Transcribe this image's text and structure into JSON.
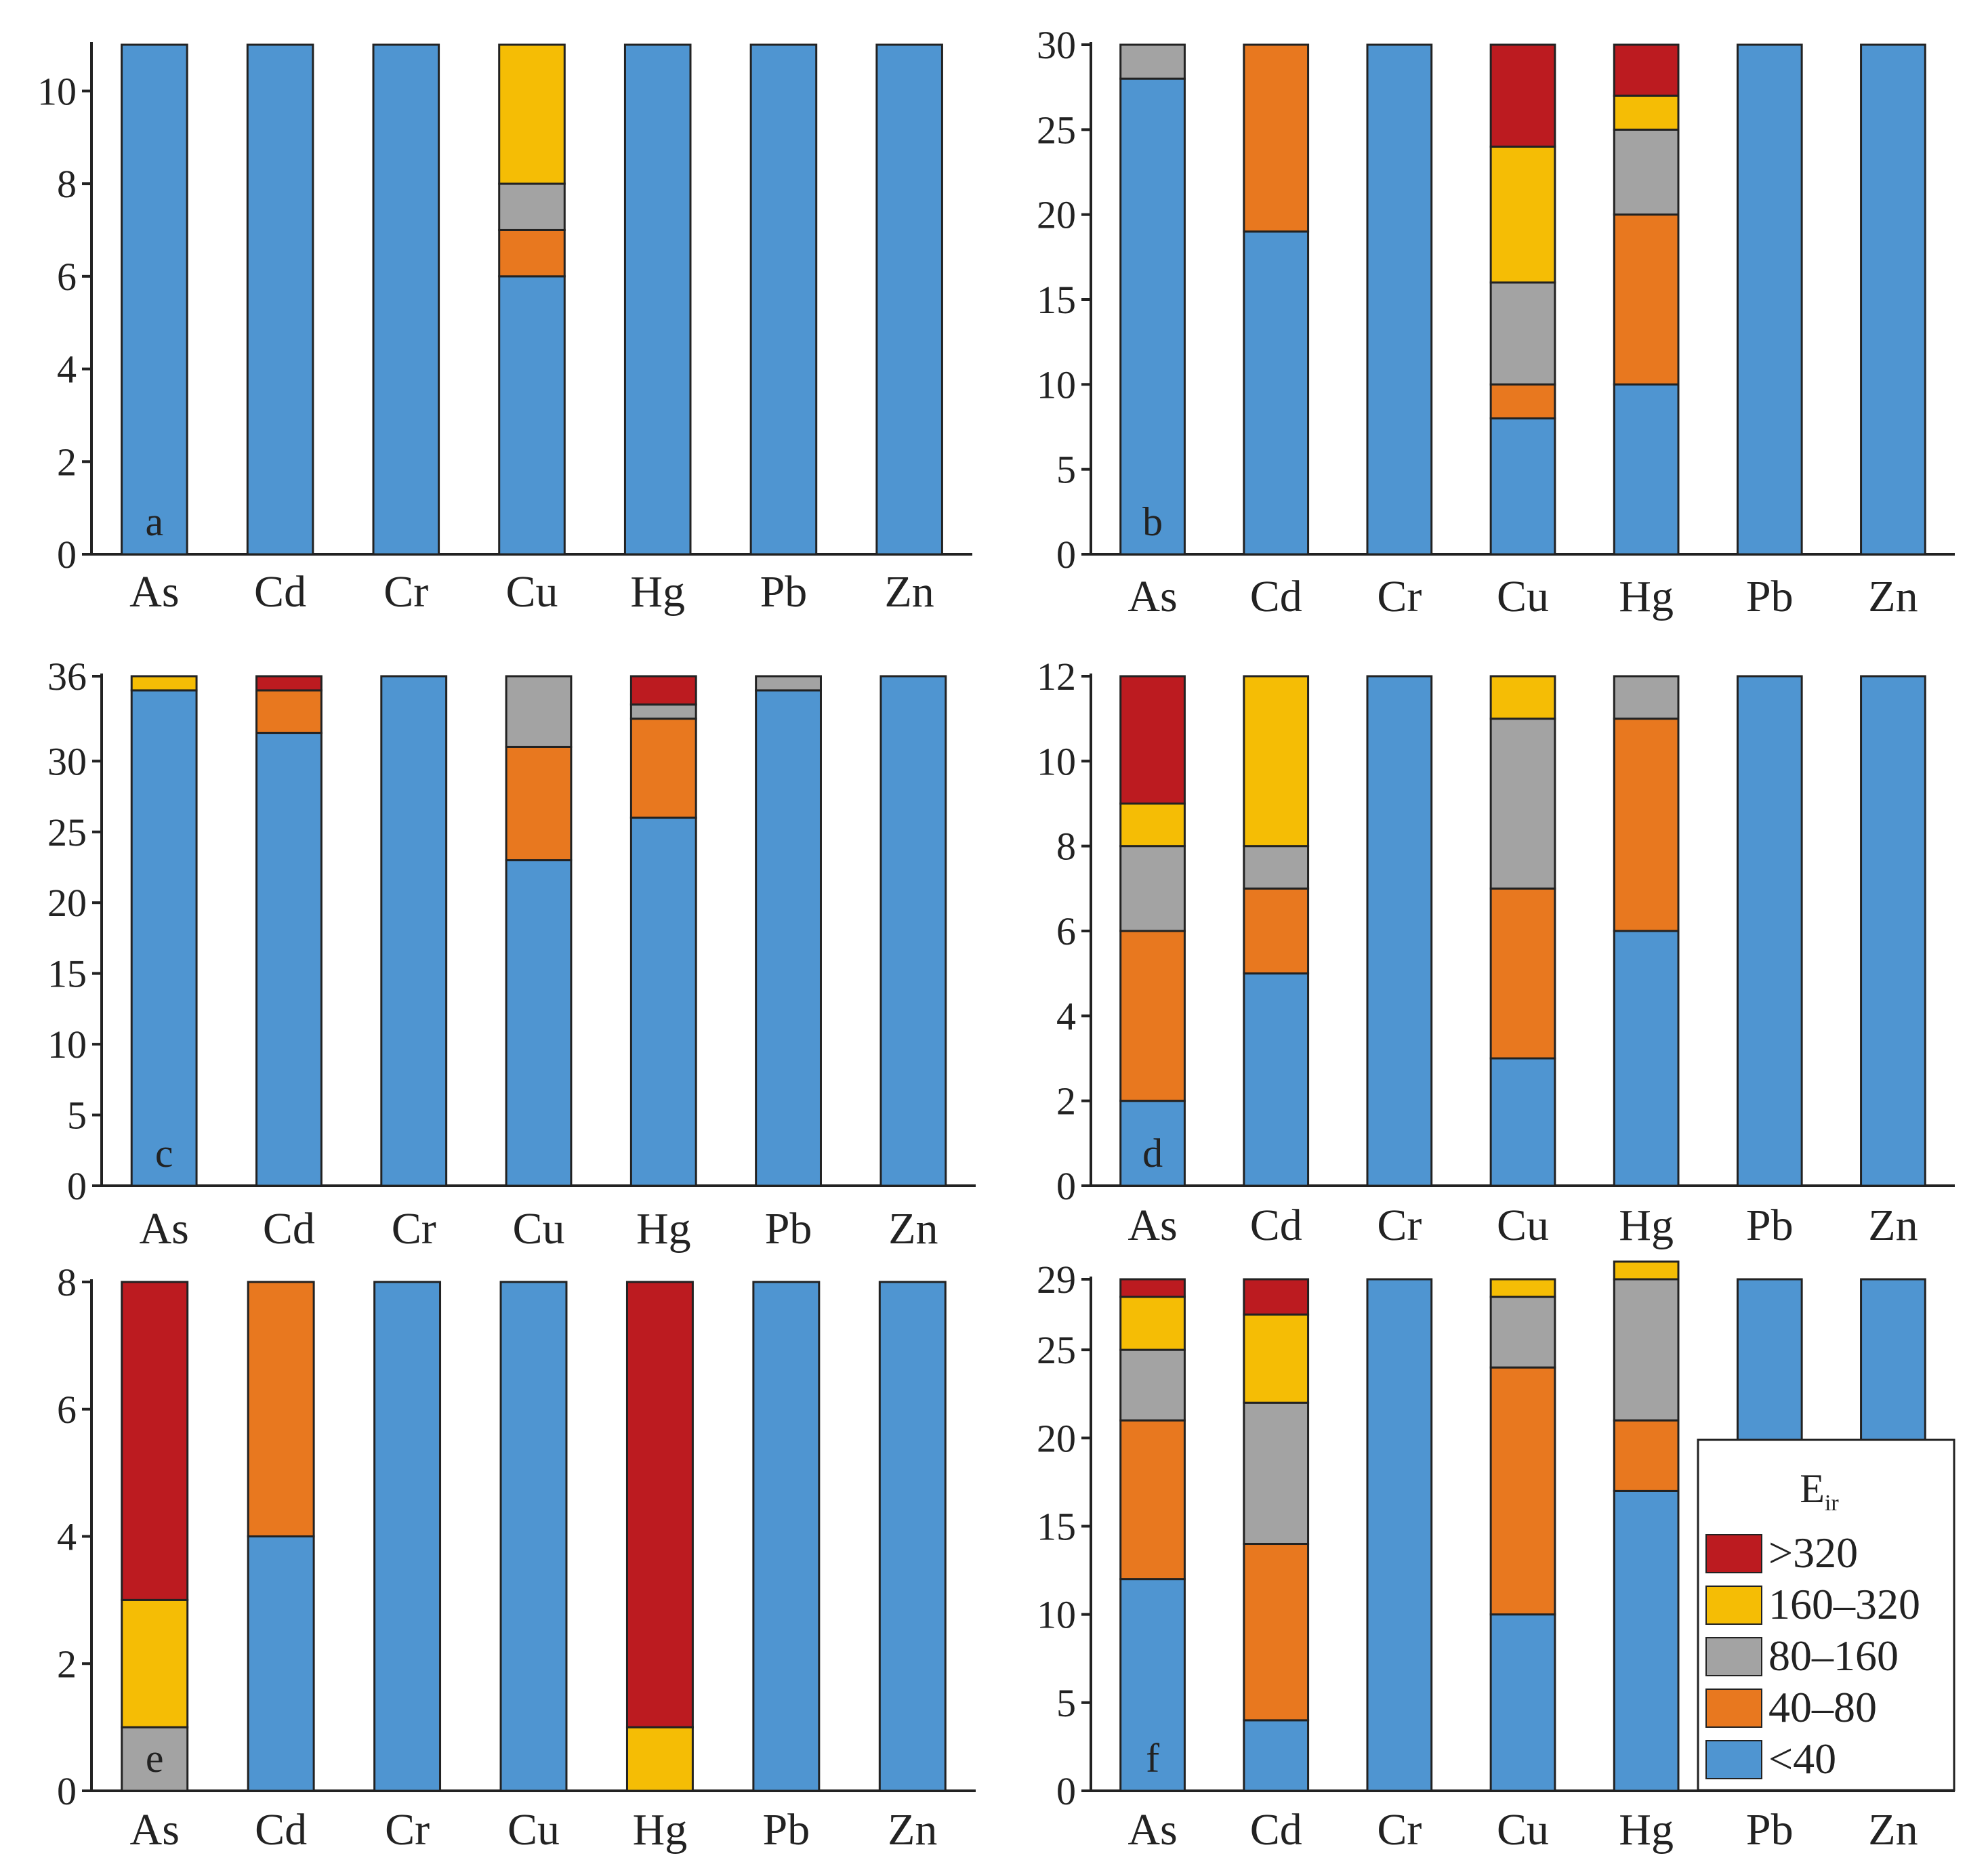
{
  "figure": {
    "colors": {
      "<40": "#4f95d1",
      "40–80": "#e8781f",
      "80–160": "#a3a3a3",
      "160–320": "#f5bd05",
      ">320": "#bc1b20"
    },
    "legend": {
      "title_main": "E",
      "title_sub": "ir",
      "entries": [
        ">320",
        "160–320",
        "80–160",
        "40–80",
        "<40"
      ],
      "location": "lower-right of panel f"
    }
  },
  "chart_data": [
    {
      "type": "bar",
      "stacked": true,
      "panel": "a",
      "categories": [
        "As",
        "Cd",
        "Cr",
        "Cu",
        "Hg",
        "Pb",
        "Zn"
      ],
      "ylim": [
        0,
        11
      ],
      "yticks": [
        "0",
        "2",
        "4",
        "6",
        "8",
        "10"
      ],
      "series": [
        {
          "name": "<40",
          "values": [
            11,
            11,
            11,
            6,
            11,
            11,
            11
          ]
        },
        {
          "name": "40–80",
          "values": [
            0,
            0,
            0,
            1,
            0,
            0,
            0
          ]
        },
        {
          "name": "80–160",
          "values": [
            0,
            0,
            0,
            1,
            0,
            0,
            0
          ]
        },
        {
          "name": "160–320",
          "values": [
            0,
            0,
            0,
            3,
            0,
            0,
            0
          ]
        },
        {
          "name": ">320",
          "values": [
            0,
            0,
            0,
            0,
            0,
            0,
            0
          ]
        }
      ]
    },
    {
      "type": "bar",
      "stacked": true,
      "panel": "b",
      "categories": [
        "As",
        "Cd",
        "Cr",
        "Cu",
        "Hg",
        "Pb",
        "Zn"
      ],
      "ylim": [
        0,
        30
      ],
      "yticks": [
        "0",
        "5",
        "10",
        "15",
        "20",
        "25",
        "30"
      ],
      "series": [
        {
          "name": "<40",
          "values": [
            28,
            19,
            30,
            8,
            10,
            30,
            30
          ]
        },
        {
          "name": "40–80",
          "values": [
            0,
            11,
            0,
            2,
            10,
            0,
            0
          ]
        },
        {
          "name": "80–160",
          "values": [
            2,
            0,
            0,
            6,
            5,
            0,
            0
          ]
        },
        {
          "name": "160–320",
          "values": [
            0,
            0,
            0,
            8,
            2,
            0,
            0
          ]
        },
        {
          "name": ">320",
          "values": [
            0,
            0,
            0,
            6,
            3,
            0,
            0
          ]
        }
      ]
    },
    {
      "type": "bar",
      "stacked": true,
      "panel": "c",
      "categories": [
        "As",
        "Cd",
        "Cr",
        "Cu",
        "Hg",
        "Pb",
        "Zn"
      ],
      "ylim": [
        0,
        36
      ],
      "yticks": [
        "0",
        "5",
        "10",
        "15",
        "20",
        "25",
        "30",
        "36"
      ],
      "series": [
        {
          "name": "<40",
          "values": [
            35,
            32,
            36,
            23,
            26,
            35,
            36
          ]
        },
        {
          "name": "40–80",
          "values": [
            0,
            3,
            0,
            8,
            7,
            0,
            0
          ]
        },
        {
          "name": "80–160",
          "values": [
            0,
            0,
            0,
            5,
            1,
            1,
            0
          ]
        },
        {
          "name": "160–320",
          "values": [
            1,
            0,
            0,
            0,
            0,
            0,
            0
          ]
        },
        {
          "name": ">320",
          "values": [
            0,
            1,
            0,
            0,
            2,
            0,
            0
          ]
        }
      ]
    },
    {
      "type": "bar",
      "stacked": true,
      "panel": "d",
      "categories": [
        "As",
        "Cd",
        "Cr",
        "Cu",
        "Hg",
        "Pb",
        "Zn"
      ],
      "ylim": [
        0,
        12
      ],
      "yticks": [
        "0",
        "2",
        "4",
        "6",
        "8",
        "10",
        "12"
      ],
      "series": [
        {
          "name": "<40",
          "values": [
            2,
            5,
            12,
            3,
            6,
            12,
            12
          ]
        },
        {
          "name": "40–80",
          "values": [
            4,
            2,
            0,
            4,
            5,
            0,
            0
          ]
        },
        {
          "name": "80–160",
          "values": [
            2,
            1,
            0,
            4,
            1,
            0,
            0
          ]
        },
        {
          "name": "160–320",
          "values": [
            1,
            4,
            0,
            1,
            0,
            0,
            0
          ]
        },
        {
          "name": ">320",
          "values": [
            3,
            0,
            0,
            0,
            0,
            0,
            0
          ]
        }
      ]
    },
    {
      "type": "bar",
      "stacked": true,
      "panel": "e",
      "categories": [
        "As",
        "Cd",
        "Cr",
        "Cu",
        "Hg",
        "Pb",
        "Zn"
      ],
      "ylim": [
        0,
        8
      ],
      "yticks": [
        "0",
        "2",
        "4",
        "6",
        "8"
      ],
      "series": [
        {
          "name": "<40",
          "values": [
            0,
            4,
            8,
            8,
            0,
            8,
            8
          ]
        },
        {
          "name": "40–80",
          "values": [
            0,
            4,
            0,
            0,
            0,
            0,
            0
          ]
        },
        {
          "name": "80–160",
          "values": [
            1,
            0,
            0,
            0,
            0,
            0,
            0
          ]
        },
        {
          "name": "160–320",
          "values": [
            2,
            0,
            0,
            0,
            1,
            0,
            0
          ]
        },
        {
          "name": ">320",
          "values": [
            5,
            0,
            0,
            0,
            7,
            0,
            0
          ]
        }
      ]
    },
    {
      "type": "bar",
      "stacked": true,
      "panel": "f",
      "categories": [
        "As",
        "Cd",
        "Cr",
        "Cu",
        "Hg",
        "Pb",
        "Zn"
      ],
      "ylim": [
        0,
        29
      ],
      "yticks": [
        "0",
        "5",
        "10",
        "15",
        "20",
        "25",
        "29"
      ],
      "series": [
        {
          "name": "<40",
          "values": [
            12,
            4,
            29,
            10,
            17,
            29,
            29
          ]
        },
        {
          "name": "40–80",
          "values": [
            9,
            10,
            0,
            14,
            4,
            0,
            0
          ]
        },
        {
          "name": "80–160",
          "values": [
            4,
            8,
            0,
            4,
            8,
            0,
            0
          ]
        },
        {
          "name": "160–320",
          "values": [
            3,
            5,
            0,
            1,
            1,
            0,
            0
          ]
        },
        {
          "name": ">320",
          "values": [
            1,
            2,
            0,
            0,
            0,
            0,
            0
          ]
        }
      ]
    }
  ]
}
